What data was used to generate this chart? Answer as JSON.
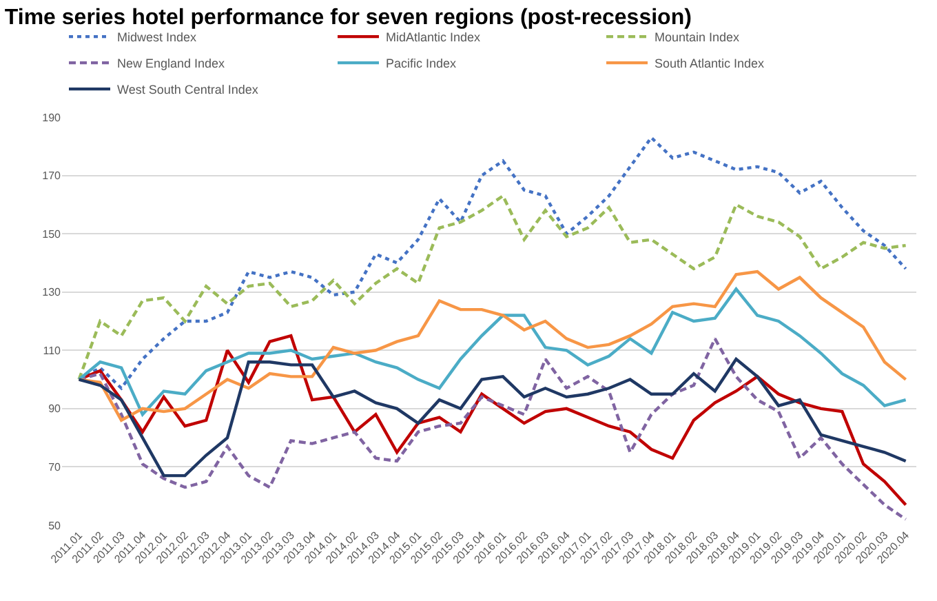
{
  "chart_data": {
    "type": "line",
    "title": "Time series hotel performance for seven regions (post-recession)",
    "categories": [
      "2011.01",
      "2011.02",
      "2011.03",
      "2011.04",
      "2012.01",
      "2012.02",
      "2012.03",
      "2012.04",
      "2013.01",
      "2013.02",
      "2013.03",
      "2013.04",
      "2014.01",
      "2014.02",
      "2014.03",
      "2014.04",
      "2015.01",
      "2015.02",
      "2015.03",
      "2015.04",
      "2016.01",
      "2016.02",
      "2016.03",
      "2016.04",
      "2017.01",
      "2017.02",
      "2017.03",
      "2017.04",
      "2018.01",
      "2018.02",
      "2018.03",
      "2018.04",
      "2019.01",
      "2019.02",
      "2019.03",
      "2019.04",
      "2020.01",
      "2020.02",
      "2020.03",
      "2020.04"
    ],
    "series": [
      {
        "name": "Midwest Index",
        "color": "#4472c4",
        "line_style": "dotted",
        "values": [
          100,
          104,
          97,
          107,
          114,
          120,
          120,
          123,
          137,
          135,
          137,
          135,
          129,
          130,
          143,
          140,
          148,
          162,
          154,
          170,
          175,
          165,
          163,
          150,
          156,
          163,
          173,
          183,
          176,
          178,
          175,
          172,
          173,
          171,
          164,
          168,
          159,
          151,
          146,
          138
        ]
      },
      {
        "name": "MidAtlantic Index",
        "color": "#c00000",
        "line_style": "solid",
        "values": [
          100,
          103,
          93,
          82,
          94,
          84,
          86,
          110,
          99,
          113,
          115,
          93,
          94,
          82,
          88,
          75,
          85,
          87,
          82,
          95,
          90,
          85,
          89,
          90,
          87,
          84,
          82,
          76,
          73,
          86,
          92,
          96,
          101,
          95,
          92,
          90,
          89,
          71,
          65,
          57
        ]
      },
      {
        "name": "Mountain Index",
        "color": "#9bbb59",
        "line_style": "dashed",
        "values": [
          100,
          120,
          115,
          127,
          128,
          120,
          132,
          126,
          132,
          133,
          125,
          127,
          134,
          126,
          133,
          138,
          133,
          152,
          154,
          158,
          163,
          148,
          158,
          149,
          152,
          159,
          147,
          148,
          143,
          138,
          142,
          160,
          156,
          154,
          149,
          138,
          142,
          147,
          145,
          146
        ]
      },
      {
        "name": "New England Index",
        "color": "#8064a2",
        "line_style": "dashed",
        "values": [
          100,
          102,
          88,
          71,
          66,
          63,
          65,
          77,
          67,
          63,
          79,
          78,
          80,
          82,
          73,
          72,
          82,
          84,
          85,
          94,
          91,
          88,
          107,
          97,
          101,
          96,
          75,
          88,
          95,
          98,
          114,
          101,
          93,
          89,
          73,
          80,
          71,
          64,
          57,
          52
        ]
      },
      {
        "name": "Pacific Index",
        "color": "#4bacc6",
        "line_style": "solid",
        "values": [
          100,
          106,
          104,
          88,
          96,
          95,
          103,
          106,
          109,
          109,
          110,
          107,
          108,
          109,
          106,
          104,
          100,
          97,
          107,
          115,
          122,
          122,
          111,
          110,
          105,
          108,
          114,
          109,
          123,
          120,
          121,
          131,
          122,
          120,
          115,
          109,
          102,
          98,
          91,
          93
        ]
      },
      {
        "name": "South Atlantic Index",
        "color": "#f79646",
        "line_style": "solid",
        "values": [
          100,
          99,
          86,
          90,
          89,
          90,
          95,
          100,
          97,
          102,
          101,
          101,
          111,
          109,
          110,
          113,
          115,
          127,
          124,
          124,
          122,
          117,
          120,
          114,
          111,
          112,
          115,
          119,
          125,
          126,
          125,
          136,
          137,
          131,
          135,
          128,
          123,
          118,
          106,
          100
        ]
      },
      {
        "name": "West South Central Index",
        "color": "#1f3864",
        "line_style": "solid",
        "values": [
          100,
          98,
          93,
          80,
          67,
          67,
          74,
          80,
          106,
          106,
          105,
          105,
          94,
          96,
          92,
          90,
          85,
          93,
          90,
          100,
          101,
          94,
          97,
          94,
          95,
          97,
          100,
          95,
          95,
          102,
          96,
          107,
          101,
          91,
          93,
          81,
          79,
          77,
          75,
          72
        ]
      }
    ],
    "ylim": [
      50,
      190
    ],
    "yticks": [
      50,
      70,
      90,
      110,
      130,
      150,
      170,
      190
    ],
    "grid": "y",
    "legend": "top",
    "marker": "none"
  }
}
